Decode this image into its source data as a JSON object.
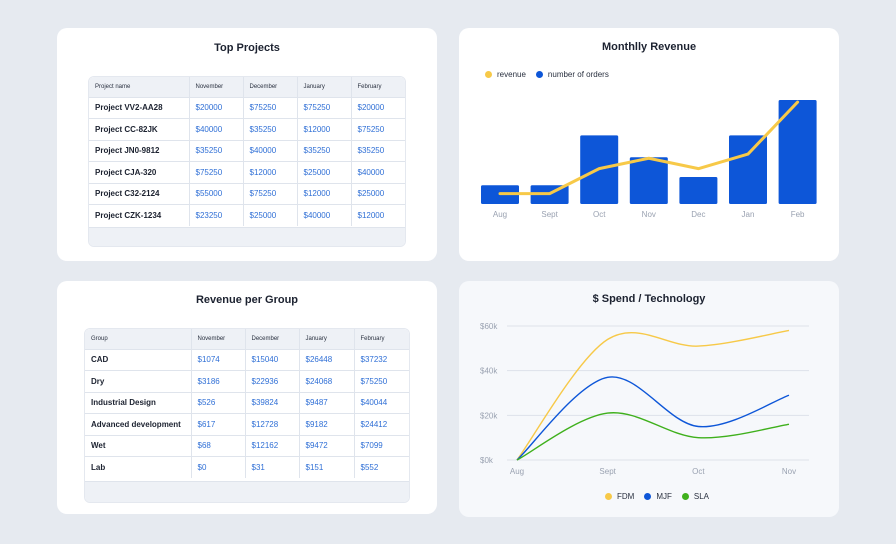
{
  "top_projects": {
    "title": "Top Projects",
    "headers": [
      "Project name",
      "November",
      "December",
      "January",
      "February"
    ],
    "rows": [
      [
        "Project VV2-AA28",
        "$20000",
        "$75250",
        "$75250",
        "$20000"
      ],
      [
        "Project CC-82JK",
        "$40000",
        "$35250",
        "$12000",
        "$75250"
      ],
      [
        "Project JN0-9812",
        "$35250",
        "$40000",
        "$35250",
        "$35250"
      ],
      [
        "Project CJA-320",
        "$75250",
        "$12000",
        "$25000",
        "$40000"
      ],
      [
        "Project C32-2124",
        "$55000",
        "$75250",
        "$12000",
        "$25000"
      ],
      [
        "Project CZK-1234",
        "$23250",
        "$25000",
        "$40000",
        "$12000"
      ]
    ]
  },
  "revenue_per_group": {
    "title": "Revenue per Group",
    "headers": [
      "Group",
      "November",
      "December",
      "January",
      "February"
    ],
    "rows": [
      [
        "CAD",
        "$1074",
        "$15040",
        "$26448",
        "$37232"
      ],
      [
        "Dry",
        "$3186",
        "$22936",
        "$24068",
        "$75250"
      ],
      [
        "Industrial Design",
        "$526",
        "$39824",
        "$9487",
        "$40044"
      ],
      [
        "Advanced development",
        "$617",
        "$12728",
        "$9182",
        "$24412"
      ],
      [
        "Wet",
        "$68",
        "$12162",
        "$9472",
        "$7099"
      ],
      [
        "Lab",
        "$0",
        "$31",
        "$151",
        "$552"
      ]
    ]
  },
  "monthly_revenue": {
    "title": "Monthlly Revenue",
    "legend": [
      {
        "label": "revenue",
        "color": "#f7c948"
      },
      {
        "label": "number of orders",
        "color": "#0d56d8"
      }
    ]
  },
  "spend_technology": {
    "title": "$ Spend / Technology",
    "legend": [
      {
        "label": "FDM",
        "color": "#f7c948"
      },
      {
        "label": "MJF",
        "color": "#0d56d8"
      },
      {
        "label": "SLA",
        "color": "#3fb01c"
      }
    ]
  },
  "chart_data": [
    {
      "type": "bar",
      "title": "Monthlly Revenue",
      "categories": [
        "Aug",
        "Sept",
        "Oct",
        "Nov",
        "Dec",
        "Jan",
        "Feb"
      ],
      "ylim": [
        0,
        100
      ],
      "grid": false,
      "legend_position": "top-left",
      "series": [
        {
          "name": "number of orders",
          "kind": "bar",
          "color": "#0d56d8",
          "values": [
            18,
            18,
            66,
            45,
            26,
            66,
            100
          ]
        },
        {
          "name": "revenue",
          "kind": "line",
          "color": "#f7c948",
          "values": [
            10,
            10,
            34,
            44,
            34,
            48,
            98
          ]
        }
      ]
    },
    {
      "type": "line",
      "title": "$ Spend / Technology",
      "categories": [
        "Aug",
        "Sept",
        "Oct",
        "Nov"
      ],
      "yticks": [
        "$0k",
        "$20k",
        "$40k",
        "$60k"
      ],
      "ylim": [
        0,
        60000
      ],
      "grid": true,
      "legend_position": "bottom",
      "series": [
        {
          "name": "FDM",
          "color": "#f7c948",
          "values": [
            0,
            54000,
            51000,
            58000
          ]
        },
        {
          "name": "MJF",
          "color": "#0d56d8",
          "values": [
            0,
            37000,
            15000,
            29000
          ]
        },
        {
          "name": "SLA",
          "color": "#3fb01c",
          "values": [
            0,
            21000,
            10000,
            16000
          ]
        }
      ]
    }
  ]
}
